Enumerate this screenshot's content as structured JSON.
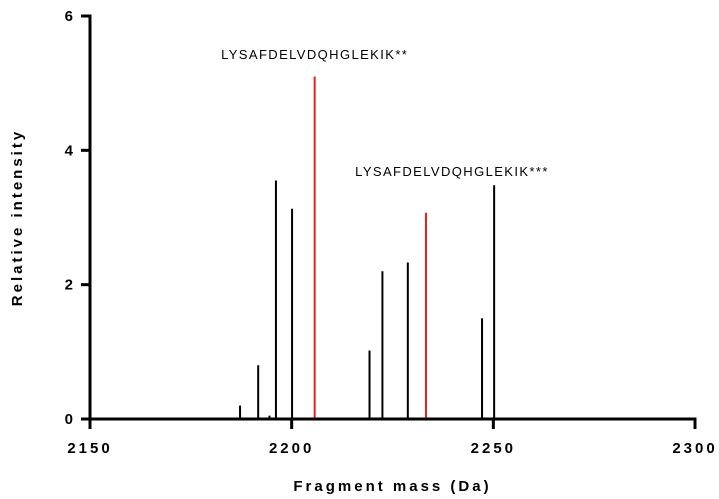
{
  "chart_data": {
    "type": "bar",
    "xlabel": "Fragment mass (Da)",
    "ylabel": "Relative intensity",
    "xlim": [
      2150,
      2300
    ],
    "ylim": [
      0,
      6
    ],
    "x_ticks": [
      "2150",
      "2200",
      "2250",
      "2300"
    ],
    "y_ticks": [
      "0",
      "2",
      "4",
      "6"
    ],
    "grid": false,
    "series": [
      {
        "color": "#000000",
        "x": [
          2187.2,
          2191.7,
          2194.5,
          2196.1,
          2200.1,
          2219.3,
          2222.5,
          2228.8,
          2247.2,
          2250.2
        ],
        "values": [
          0.2,
          0.8,
          0.05,
          3.55,
          3.13,
          1.02,
          2.2,
          2.33,
          1.5,
          3.48
        ]
      },
      {
        "color": "#e8201a",
        "x": [
          2205.7,
          2233.3
        ],
        "values": [
          5.1,
          3.07
        ]
      }
    ],
    "annotations": [
      {
        "text": "LYSAFDELVDQHGLEKIK**",
        "x": 2205.7
      },
      {
        "text": "LYSAFDELVDQHGLEKIK***",
        "x": 2233.3
      }
    ]
  }
}
